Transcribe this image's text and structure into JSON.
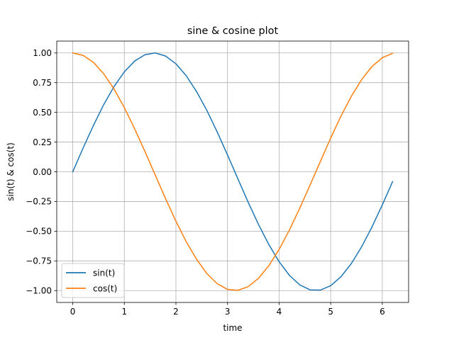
{
  "chart_data": {
    "type": "line",
    "title": "sine & cosine plot",
    "xlabel": "time",
    "ylabel": "sin(t) & cos(t)",
    "xlim": [
      -0.31,
      6.51
    ],
    "ylim": [
      -1.1,
      1.1
    ],
    "xticks": [
      0,
      1,
      2,
      3,
      4,
      5,
      6
    ],
    "xtick_labels": [
      "0",
      "1",
      "2",
      "3",
      "4",
      "5",
      "6"
    ],
    "yticks": [
      -1.0,
      -0.75,
      -0.5,
      -0.25,
      0.0,
      0.25,
      0.5,
      0.75,
      1.0
    ],
    "ytick_labels": [
      "−1.00",
      "−0.75",
      "−0.50",
      "−0.25",
      "0.00",
      "0.25",
      "0.50",
      "0.75",
      "1.00"
    ],
    "grid": true,
    "legend": "lower-left",
    "x": [
      0.0,
      0.2,
      0.4,
      0.6,
      0.8,
      1.0,
      1.2,
      1.4,
      1.6,
      1.8,
      2.0,
      2.2,
      2.4,
      2.6,
      2.8,
      3.0,
      3.2,
      3.4,
      3.6,
      3.8,
      4.0,
      4.2,
      4.4,
      4.6,
      4.8,
      5.0,
      5.2,
      5.4,
      5.6,
      5.8,
      6.0,
      6.2
    ],
    "series": [
      {
        "name": "sin(t)",
        "color": "#1f77b4",
        "values": [
          0.0,
          0.199,
          0.389,
          0.565,
          0.717,
          0.841,
          0.932,
          0.985,
          1.0,
          0.974,
          0.909,
          0.808,
          0.675,
          0.516,
          0.335,
          0.141,
          -0.058,
          -0.256,
          -0.443,
          -0.612,
          -0.757,
          -0.872,
          -0.952,
          -0.994,
          -0.996,
          -0.959,
          -0.883,
          -0.773,
          -0.631,
          -0.465,
          -0.279,
          -0.083
        ]
      },
      {
        "name": "cos(t)",
        "color": "#ff7f0e",
        "values": [
          1.0,
          0.98,
          0.921,
          0.825,
          0.697,
          0.54,
          0.362,
          0.17,
          -0.029,
          -0.227,
          -0.416,
          -0.589,
          -0.737,
          -0.857,
          -0.942,
          -0.99,
          -0.998,
          -0.967,
          -0.897,
          -0.791,
          -0.654,
          -0.49,
          -0.307,
          -0.112,
          0.087,
          0.284,
          0.469,
          0.635,
          0.776,
          0.886,
          0.96,
          0.997
        ]
      }
    ]
  }
}
